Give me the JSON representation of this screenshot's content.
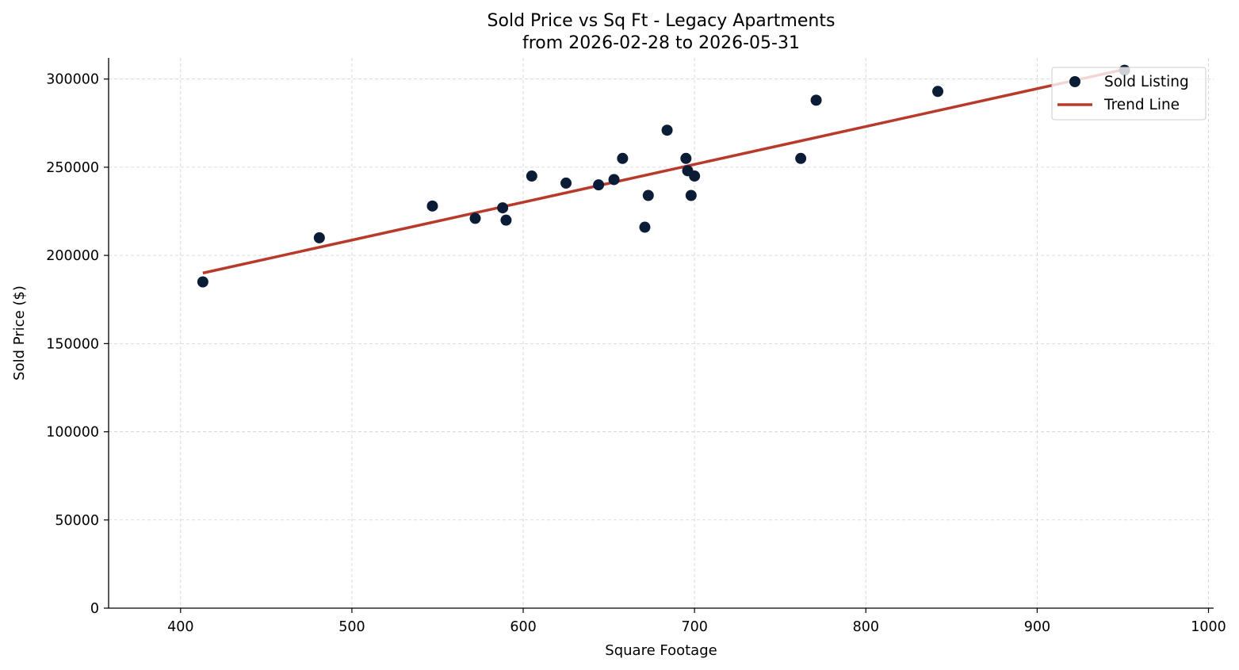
{
  "chart_data": {
    "type": "scatter",
    "title": "Sold Price vs Sq Ft - Legacy Apartments",
    "subtitle": "from 2026-02-28 to 2026-05-31",
    "xlabel": "Square Footage",
    "ylabel": "Sold Price ($)",
    "xlim": [
      358,
      1003
    ],
    "ylim": [
      0,
      312000
    ],
    "xticks": [
      400,
      500,
      600,
      700,
      800,
      900,
      1000
    ],
    "yticks": [
      0,
      50000,
      100000,
      150000,
      200000,
      250000,
      300000
    ],
    "grid": true,
    "legend_position": "top-right",
    "colors": {
      "points": "#0b1d36",
      "trend": "#b83a2a"
    },
    "series": [
      {
        "name": "Sold Listing",
        "kind": "scatter",
        "points": [
          {
            "x": 413,
            "y": 185000
          },
          {
            "x": 481,
            "y": 210000
          },
          {
            "x": 547,
            "y": 228000
          },
          {
            "x": 572,
            "y": 221000
          },
          {
            "x": 588,
            "y": 227000
          },
          {
            "x": 590,
            "y": 220000
          },
          {
            "x": 605,
            "y": 245000
          },
          {
            "x": 625,
            "y": 241000
          },
          {
            "x": 644,
            "y": 240000
          },
          {
            "x": 653,
            "y": 243000
          },
          {
            "x": 658,
            "y": 255000
          },
          {
            "x": 671,
            "y": 216000
          },
          {
            "x": 673,
            "y": 234000
          },
          {
            "x": 684,
            "y": 271000
          },
          {
            "x": 695,
            "y": 255000
          },
          {
            "x": 696,
            "y": 248000
          },
          {
            "x": 698,
            "y": 234000
          },
          {
            "x": 700,
            "y": 245000
          },
          {
            "x": 762,
            "y": 255000
          },
          {
            "x": 771,
            "y": 288000
          },
          {
            "x": 842,
            "y": 293000
          },
          {
            "x": 951,
            "y": 305000
          }
        ]
      },
      {
        "name": "Trend Line",
        "kind": "line",
        "points": [
          {
            "x": 413,
            "y": 190000
          },
          {
            "x": 951,
            "y": 305500
          }
        ]
      }
    ]
  }
}
